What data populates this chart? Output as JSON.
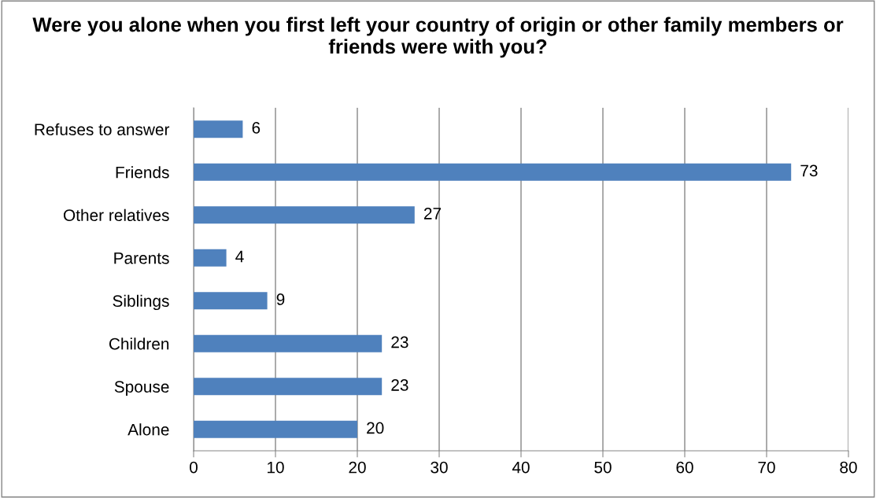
{
  "chart_data": {
    "type": "bar",
    "orientation": "horizontal",
    "title": "Were you alone when you first left your country of origin or other family members or friends were with you?",
    "categories": [
      "Refuses to answer",
      "Friends",
      "Other relatives",
      "Parents",
      "Siblings",
      "Children",
      "Spouse",
      "Alone"
    ],
    "values": [
      6,
      73,
      27,
      4,
      9,
      23,
      23,
      20
    ],
    "color": "#4f81bd",
    "xlim": [
      0,
      80
    ],
    "xticks": [
      0,
      10,
      20,
      30,
      40,
      50,
      60,
      70,
      80
    ],
    "grid": "x",
    "data_labels": true,
    "legend": false
  }
}
